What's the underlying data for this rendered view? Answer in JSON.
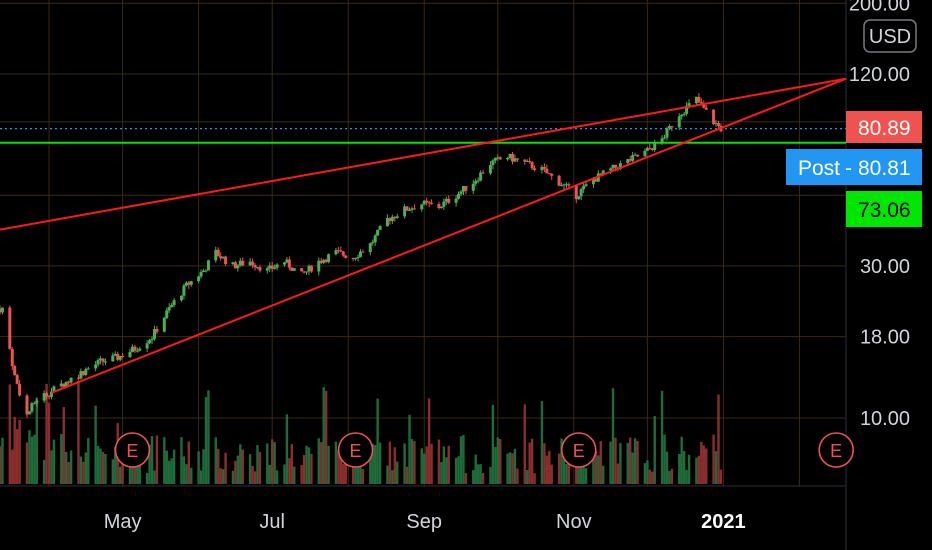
{
  "currency_button": "USD",
  "y_axis": {
    "scale": "log",
    "ticks": [
      "200.00",
      "120.00",
      "30.00",
      "18.00",
      "10.00"
    ]
  },
  "x_axis": {
    "ticks": [
      "May",
      "Jul",
      "Sep",
      "Nov",
      "2021"
    ]
  },
  "price_labels": {
    "last": {
      "value": "80.89",
      "color": "#ef5350"
    },
    "post": {
      "label": "Post",
      "value": "80.81",
      "color": "#2196f3"
    },
    "level": {
      "value": "73.06",
      "color": "#00e600"
    }
  },
  "earnings_marker": "E",
  "chart_data": {
    "type": "candlestick",
    "scale": "log",
    "ylim": [
      6,
      200
    ],
    "xlim": [
      "2020-03-12",
      "2021-02-20"
    ],
    "grid": true,
    "series_close": [
      [
        "2020-03-13",
        22.0
      ],
      [
        "2020-03-18",
        13.5
      ],
      [
        "2020-03-23",
        10.2
      ],
      [
        "2020-03-27",
        11.5
      ],
      [
        "2020-04-01",
        12.0
      ],
      [
        "2020-04-08",
        13.0
      ],
      [
        "2020-04-15",
        14.0
      ],
      [
        "2020-04-22",
        15.0
      ],
      [
        "2020-04-29",
        15.5
      ],
      [
        "2020-05-06",
        16.5
      ],
      [
        "2020-05-13",
        18.0
      ],
      [
        "2020-05-20",
        22.0
      ],
      [
        "2020-05-27",
        26.0
      ],
      [
        "2020-06-03",
        29.0
      ],
      [
        "2020-06-08",
        33.0
      ],
      [
        "2020-06-15",
        30.0
      ],
      [
        "2020-06-22",
        31.0
      ],
      [
        "2020-06-29",
        29.0
      ],
      [
        "2020-07-06",
        31.0
      ],
      [
        "2020-07-13",
        28.0
      ],
      [
        "2020-07-20",
        31.0
      ],
      [
        "2020-07-27",
        33.0
      ],
      [
        "2020-08-03",
        32.0
      ],
      [
        "2020-08-10",
        35.0
      ],
      [
        "2020-08-17",
        42.0
      ],
      [
        "2020-08-24",
        45.0
      ],
      [
        "2020-08-31",
        47.0
      ],
      [
        "2020-09-07",
        46.0
      ],
      [
        "2020-09-14",
        50.0
      ],
      [
        "2020-09-21",
        55.0
      ],
      [
        "2020-09-28",
        63.0
      ],
      [
        "2020-10-05",
        66.0
      ],
      [
        "2020-10-12",
        63.0
      ],
      [
        "2020-10-19",
        60.0
      ],
      [
        "2020-10-26",
        55.0
      ],
      [
        "2020-11-02",
        50.0
      ],
      [
        "2020-11-09",
        56.0
      ],
      [
        "2020-11-16",
        60.0
      ],
      [
        "2020-11-23",
        64.0
      ],
      [
        "2020-11-30",
        68.0
      ],
      [
        "2020-12-07",
        75.0
      ],
      [
        "2020-12-14",
        90.0
      ],
      [
        "2020-12-21",
        100.0
      ],
      [
        "2020-12-28",
        85.0
      ],
      [
        "2020-12-31",
        80.89
      ]
    ],
    "horizontal_levels": [
      {
        "value": 80.89,
        "style": "dotted",
        "color": "#2196f3"
      },
      {
        "value": 73.06,
        "style": "solid",
        "color": "#00e600"
      }
    ],
    "trendlines": [
      {
        "from": [
          "2020-03-12",
          39.0
        ],
        "to": [
          "2021-02-20",
          116.0
        ],
        "color": "#ff1a1a"
      },
      {
        "from": [
          "2020-04-02",
          12.0
        ],
        "to": [
          "2021-02-20",
          116.0
        ],
        "color": "#ff1a1a"
      }
    ],
    "earnings_dates": [
      "2020-05-05",
      "2020-08-04",
      "2020-11-03",
      "2021-02-16"
    ],
    "volume": "present"
  }
}
